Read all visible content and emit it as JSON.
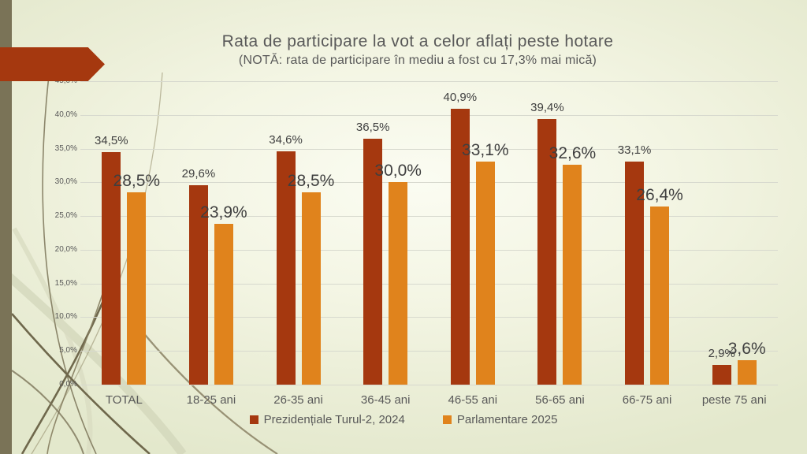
{
  "chart_data": {
    "type": "bar",
    "title": "Rata de participare la vot a celor aflați peste hotare",
    "subtitle": "(NOTĂ: rata de participare în mediu a fost cu 17,3% mai mică)",
    "categories": [
      "TOTAL",
      "18-25 ani",
      "26-35 ani",
      "36-45 ani",
      "46-55 ani",
      "56-65 ani",
      "66-75 ani",
      "peste 75 ani"
    ],
    "series": [
      {
        "name": "Prezidențiale Turul-2, 2024",
        "color": "#a5380f",
        "values": [
          34.5,
          29.6,
          34.6,
          36.5,
          40.9,
          39.4,
          33.1,
          2.9
        ],
        "labels": [
          "34,5%",
          "29,6%",
          "34,6%",
          "36,5%",
          "40,9%",
          "39,4%",
          "33,1%",
          "2,9%"
        ]
      },
      {
        "name": "Parlamentare 2025",
        "color": "#e0831c",
        "values": [
          28.5,
          23.9,
          28.5,
          30.0,
          33.1,
          32.6,
          26.4,
          3.6
        ],
        "labels": [
          "28,5%",
          "23,9%",
          "28,5%",
          "30,0%",
          "33,1%",
          "32,6%",
          "26,4%",
          "3,6%"
        ]
      }
    ],
    "y_axis": {
      "min": 0,
      "max": 45,
      "step": 5,
      "tick_values": [
        45,
        40,
        35,
        30,
        25,
        20,
        15,
        10,
        5,
        0
      ],
      "tick_labels": [
        "45,0%",
        "40,0%",
        "35,0%",
        "30,0%",
        "25,0%",
        "20,0%",
        "15,0%",
        "10,0%",
        "5,0%",
        "0,0%"
      ]
    },
    "grid": true,
    "legend_position": "bottom"
  },
  "theme": {
    "accent_red": "#a5380f",
    "accent_orange": "#e0831c",
    "rail_olive": "#7a7357",
    "text_gray": "#595959"
  }
}
